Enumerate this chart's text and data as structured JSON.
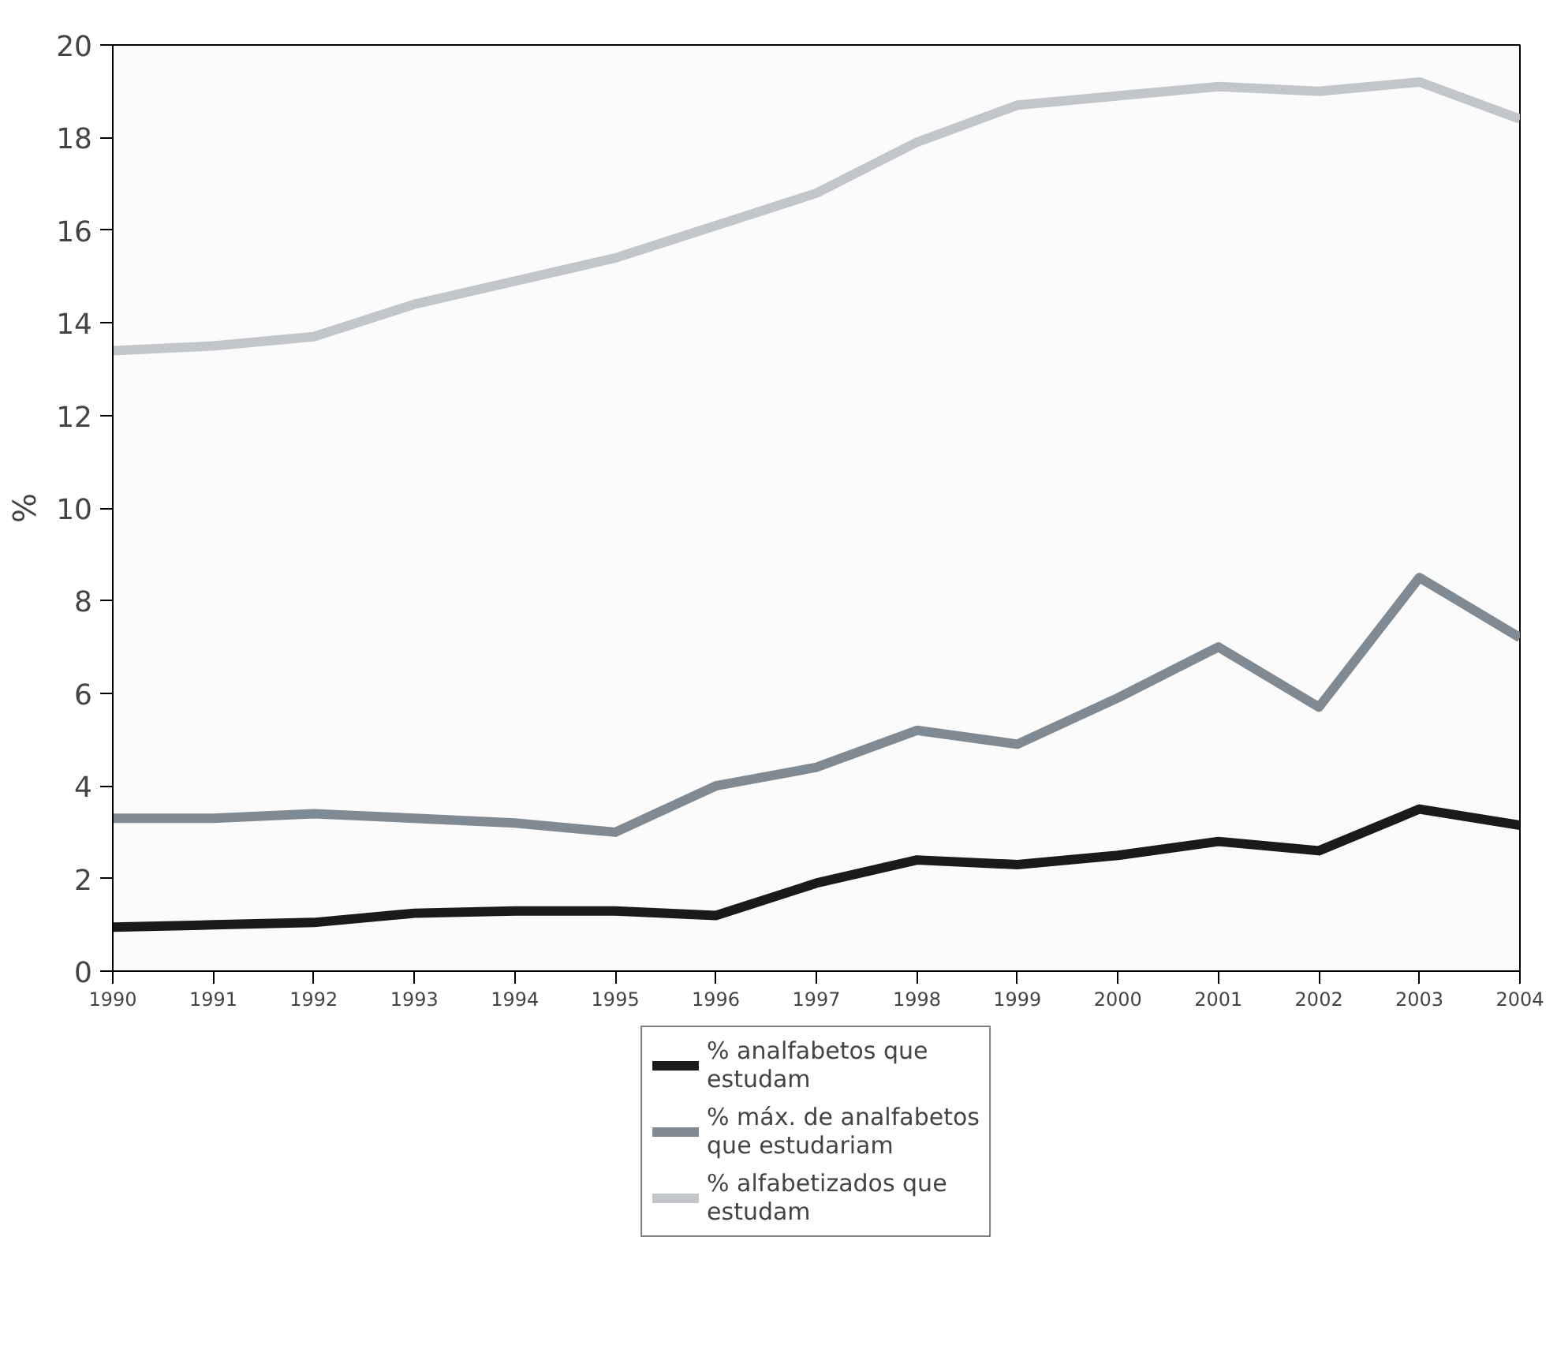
{
  "chart_data": {
    "type": "line",
    "ylabel": "%",
    "x": [
      1990,
      1991,
      1992,
      1993,
      1994,
      1995,
      1996,
      1997,
      1998,
      1999,
      2000,
      2001,
      2002,
      2003,
      2004
    ],
    "xlim": [
      1990,
      2004
    ],
    "xticks": [
      1990,
      1991,
      1992,
      1993,
      1994,
      1995,
      1996,
      1997,
      1998,
      1999,
      2000,
      2001,
      2002,
      2003,
      2004
    ],
    "ylim": [
      0,
      20
    ],
    "yticks": [
      0,
      2,
      4,
      6,
      8,
      10,
      12,
      14,
      16,
      18,
      20
    ],
    "grid": false,
    "legend": "bottom",
    "line_style": "solid",
    "series": [
      {
        "name": "% analfabetos que estudam",
        "color": "#1a1a1a",
        "values": [
          0.95,
          1.0,
          1.05,
          1.25,
          1.3,
          1.3,
          1.2,
          1.9,
          2.4,
          2.3,
          2.5,
          2.8,
          2.6,
          3.5,
          3.15
        ]
      },
      {
        "name": "% máx. de analfabetos que estudariam",
        "color": "#808a92",
        "values": [
          3.3,
          3.3,
          3.4,
          3.3,
          3.2,
          3.0,
          4.0,
          4.4,
          5.2,
          4.9,
          5.9,
          7.0,
          5.7,
          8.5,
          7.2
        ]
      },
      {
        "name": "% alfabetizados que estudam",
        "color": "#c2c6cb",
        "values": [
          13.4,
          13.5,
          13.7,
          14.4,
          14.9,
          15.4,
          16.1,
          16.8,
          17.9,
          18.7,
          18.9,
          19.1,
          19.0,
          19.2,
          18.4
        ]
      }
    ]
  }
}
